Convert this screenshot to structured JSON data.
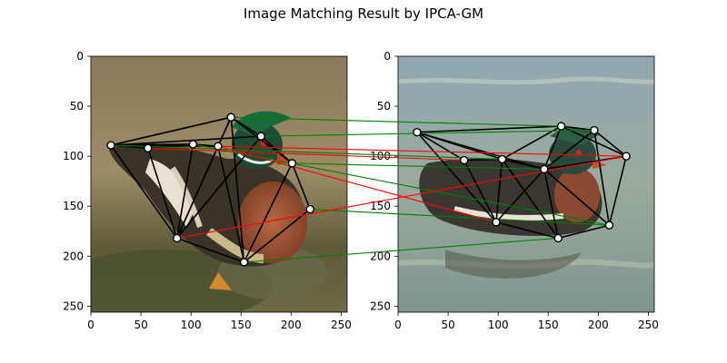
{
  "title": "Image Matching Result by IPCA-GM",
  "colors": {
    "correct_match": "#008000",
    "wrong_match": "#ff0000",
    "graph_edge": "#000000",
    "node_fill": "#ffffff",
    "node_stroke": "#000000"
  },
  "chart_data": {
    "type": "scatter",
    "panels": [
      {
        "name": "left-image",
        "xlim": [
          0,
          256
        ],
        "ylim": [
          256,
          0
        ],
        "xticks": [
          0,
          50,
          100,
          150,
          200,
          250
        ],
        "yticks": [
          0,
          50,
          100,
          150,
          200,
          250
        ],
        "keypoints": [
          [
            20,
            89
          ],
          [
            57,
            92
          ],
          [
            102,
            88
          ],
          [
            127,
            90
          ],
          [
            140,
            61
          ],
          [
            170,
            80
          ],
          [
            201,
            107
          ],
          [
            219,
            153
          ],
          [
            153,
            206
          ],
          [
            86,
            182
          ]
        ],
        "edges": [
          [
            0,
            1
          ],
          [
            0,
            2
          ],
          [
            0,
            3
          ],
          [
            0,
            4
          ],
          [
            0,
            5
          ],
          [
            0,
            9
          ],
          [
            1,
            2
          ],
          [
            1,
            9
          ],
          [
            2,
            3
          ],
          [
            2,
            9
          ],
          [
            3,
            4
          ],
          [
            3,
            9
          ],
          [
            3,
            8
          ],
          [
            4,
            5
          ],
          [
            4,
            6
          ],
          [
            4,
            9
          ],
          [
            5,
            6
          ],
          [
            5,
            9
          ],
          [
            6,
            7
          ],
          [
            6,
            8
          ],
          [
            7,
            8
          ],
          [
            9,
            8
          ],
          [
            4,
            8
          ]
        ]
      },
      {
        "name": "right-image",
        "xlim": [
          0,
          256
        ],
        "ylim": [
          256,
          0
        ],
        "xticks": [
          0,
          50,
          100,
          150,
          200,
          250
        ],
        "yticks": [
          0,
          50,
          100,
          150,
          200,
          250
        ],
        "keypoints": [
          [
            19,
            76
          ],
          [
            66,
            104
          ],
          [
            104,
            103
          ],
          [
            146,
            113
          ],
          [
            163,
            70
          ],
          [
            196,
            74
          ],
          [
            228,
            100
          ],
          [
            211,
            169
          ],
          [
            160,
            182
          ],
          [
            98,
            166
          ]
        ],
        "edges": [
          [
            0,
            1
          ],
          [
            0,
            2
          ],
          [
            0,
            3
          ],
          [
            0,
            4
          ],
          [
            0,
            9
          ],
          [
            1,
            2
          ],
          [
            1,
            9
          ],
          [
            2,
            3
          ],
          [
            2,
            4
          ],
          [
            2,
            9
          ],
          [
            3,
            4
          ],
          [
            3,
            5
          ],
          [
            3,
            6
          ],
          [
            3,
            7
          ],
          [
            3,
            8
          ],
          [
            3,
            9
          ],
          [
            4,
            5
          ],
          [
            5,
            6
          ],
          [
            6,
            7
          ],
          [
            7,
            8
          ],
          [
            8,
            9
          ],
          [
            4,
            6
          ],
          [
            2,
            8
          ],
          [
            5,
            7
          ]
        ]
      }
    ],
    "matches": [
      {
        "left": 0,
        "right": 2,
        "correct": true
      },
      {
        "left": 1,
        "right": 1,
        "correct": false
      },
      {
        "left": 2,
        "right": 7,
        "correct": true
      },
      {
        "left": 3,
        "right": 6,
        "correct": false
      },
      {
        "left": 4,
        "right": 4,
        "correct": true
      },
      {
        "left": 5,
        "right": 5,
        "correct": true
      },
      {
        "left": 6,
        "right": 3,
        "correct": true
      },
      {
        "left": 7,
        "right": 7,
        "correct": true
      },
      {
        "left": 8,
        "right": 8,
        "correct": true
      },
      {
        "left": 9,
        "right": 6,
        "correct": false
      },
      {
        "left": 3,
        "right": 9,
        "correct": false
      }
    ]
  }
}
